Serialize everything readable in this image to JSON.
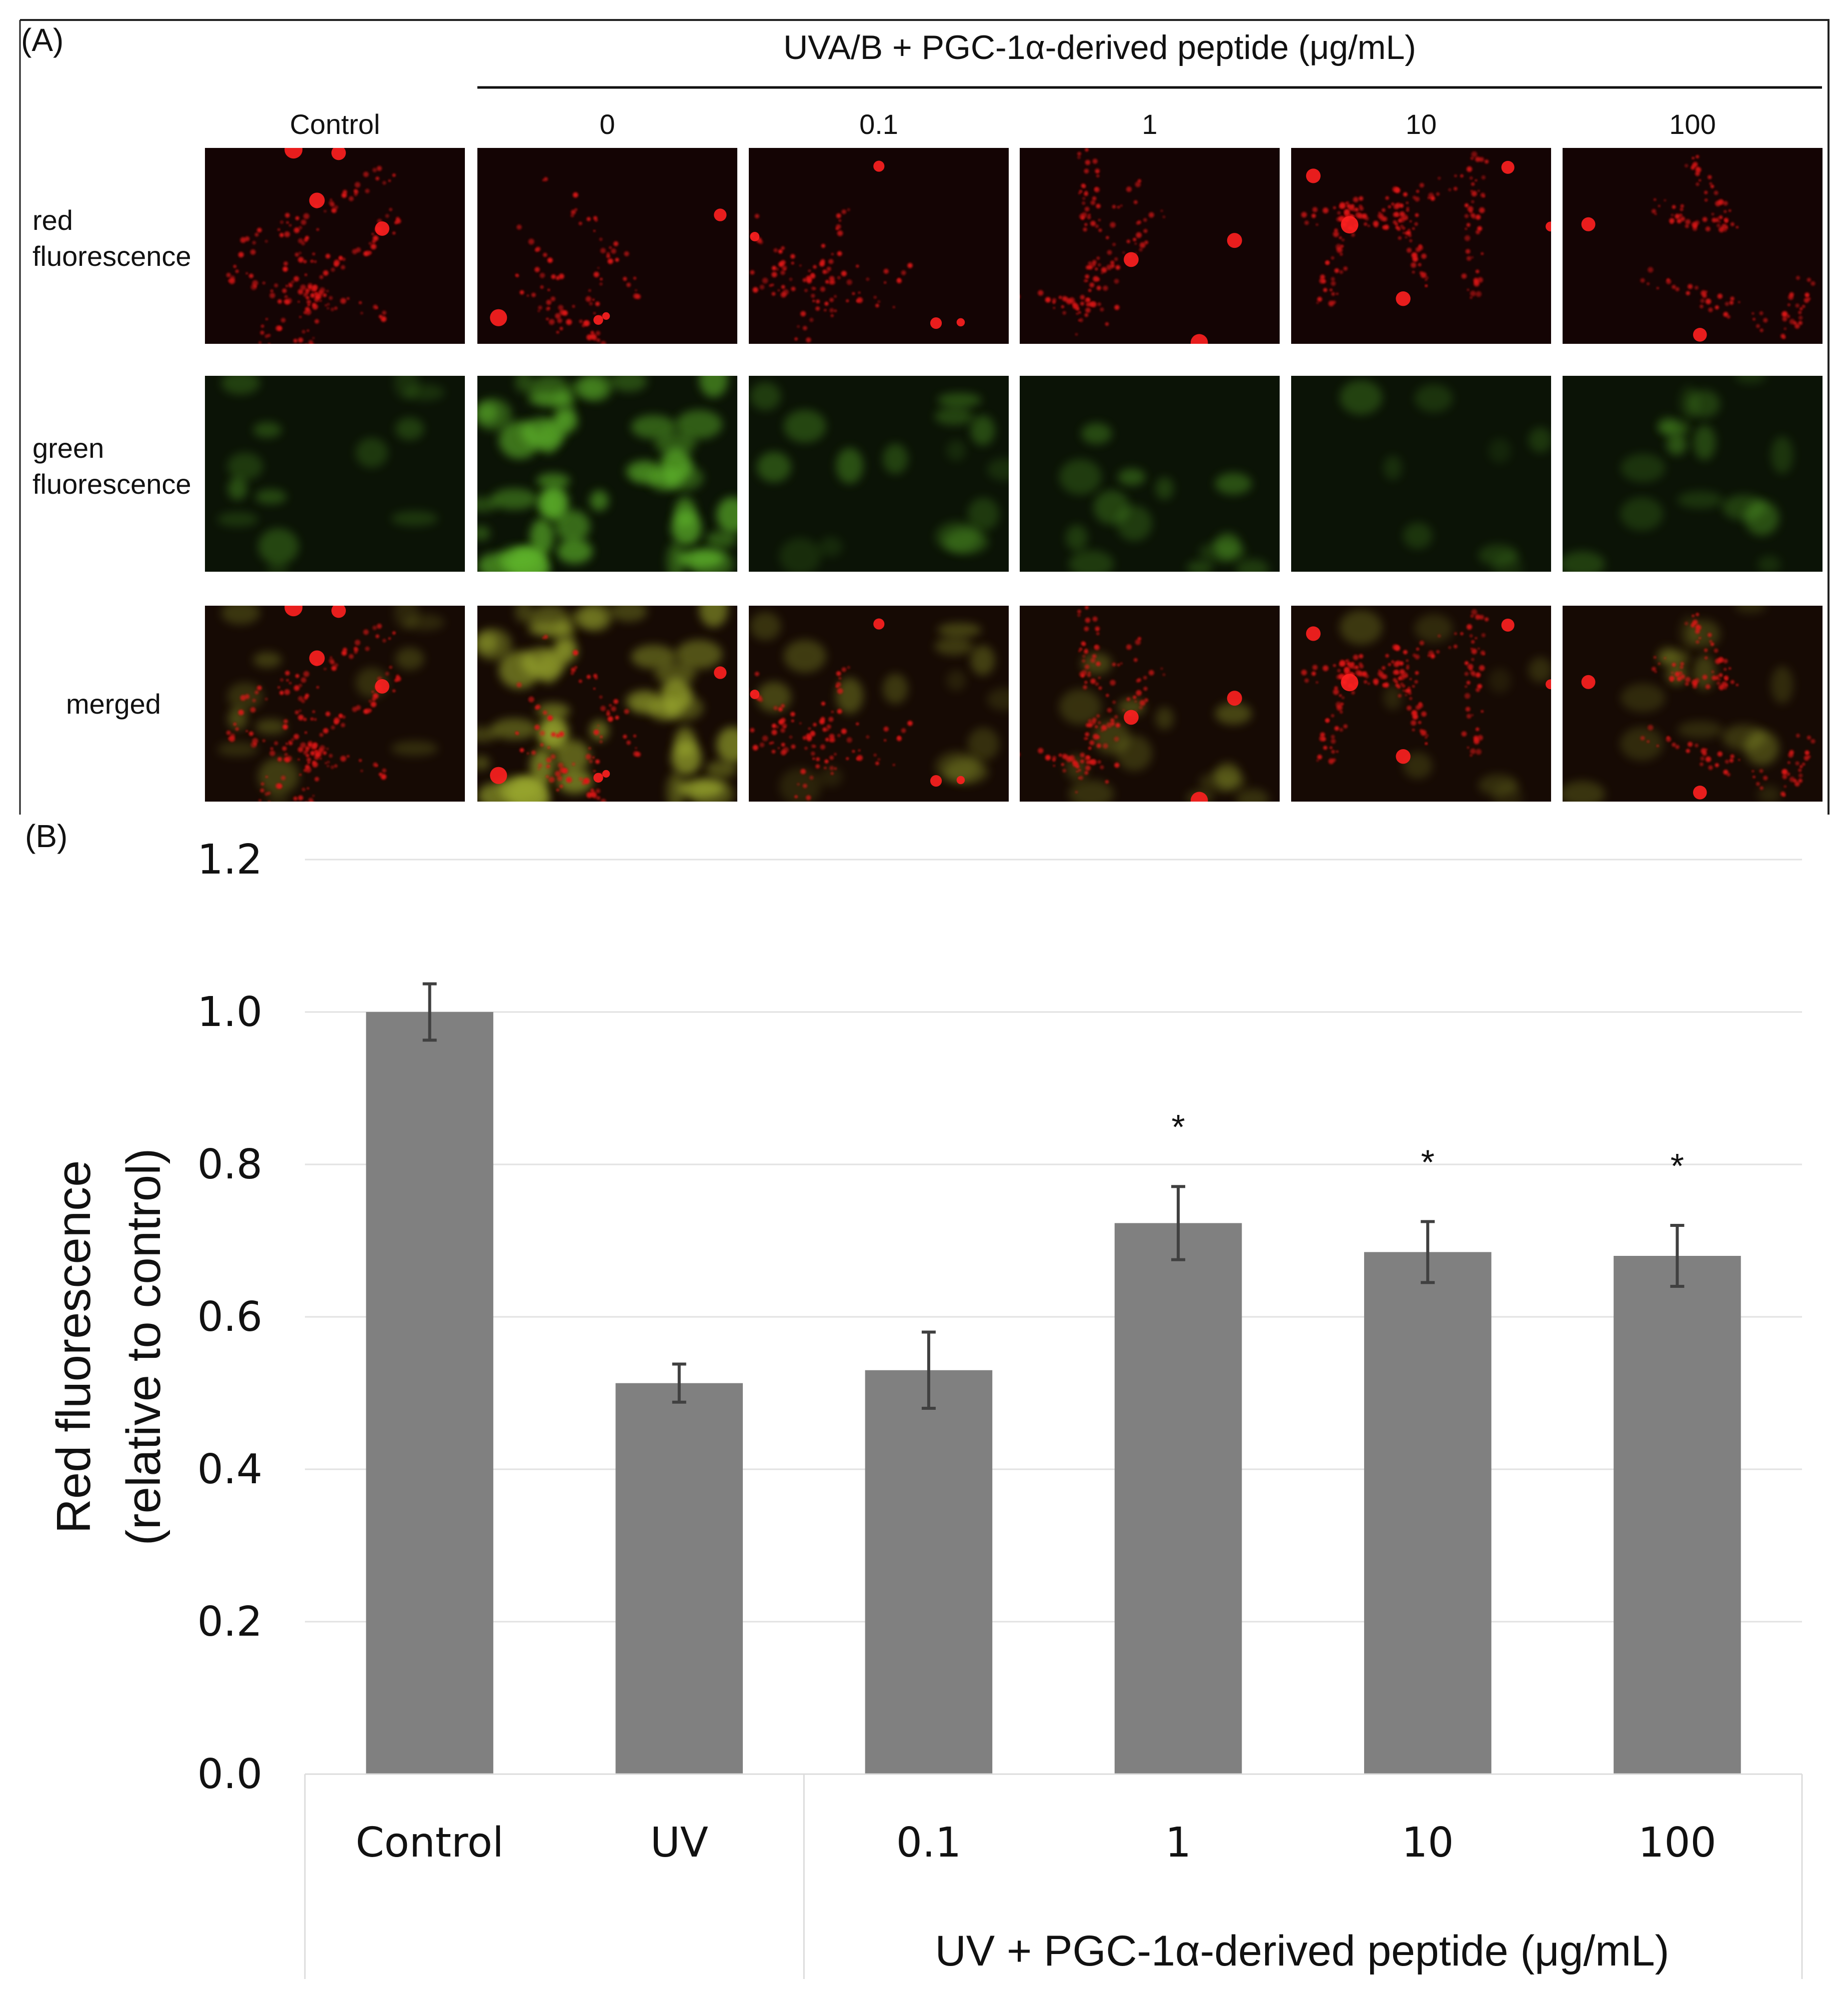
{
  "panel_a": {
    "label": "(A)",
    "group_header": "UVA/B + PGC-1α-derived peptide (μg/mL)",
    "columns": [
      "Control",
      "0",
      "0.1",
      "1",
      "10",
      "100"
    ],
    "rows": [
      {
        "label_lines": [
          "red",
          "fluorescence"
        ],
        "channel": "red"
      },
      {
        "label_lines": [
          "green",
          "fluorescence"
        ],
        "channel": "green"
      },
      {
        "label_lines": [
          "merged"
        ],
        "channel": "merged"
      }
    ],
    "colors": {
      "red": "#e01818",
      "green": "#5fb52a",
      "merged_green": "#9aa82e",
      "tile_bg": "#140404"
    }
  },
  "panel_b": {
    "label": "(B)"
  },
  "chart_data": {
    "type": "bar",
    "categories": [
      "Control",
      "UV",
      "0.1",
      "1",
      "10",
      "100"
    ],
    "values": [
      1.0,
      0.513,
      0.53,
      0.723,
      0.685,
      0.68
    ],
    "errors": [
      0.037,
      0.025,
      0.05,
      0.048,
      0.04,
      0.04
    ],
    "significance": [
      "",
      "",
      "",
      "*",
      "*",
      "*"
    ],
    "title": "",
    "xlabel": "UV + PGC-1α-derived peptide (μg/mL)",
    "ylabel_lines": [
      "Red fluorescence",
      "(relative to control)"
    ],
    "ylim": [
      0,
      1.2
    ],
    "yticks": [
      "0.0",
      "0.2",
      "0.4",
      "0.6",
      "0.8",
      "1.0",
      "1.2"
    ],
    "grid": true,
    "bar_color": "#808080",
    "error_color": "#404040"
  }
}
